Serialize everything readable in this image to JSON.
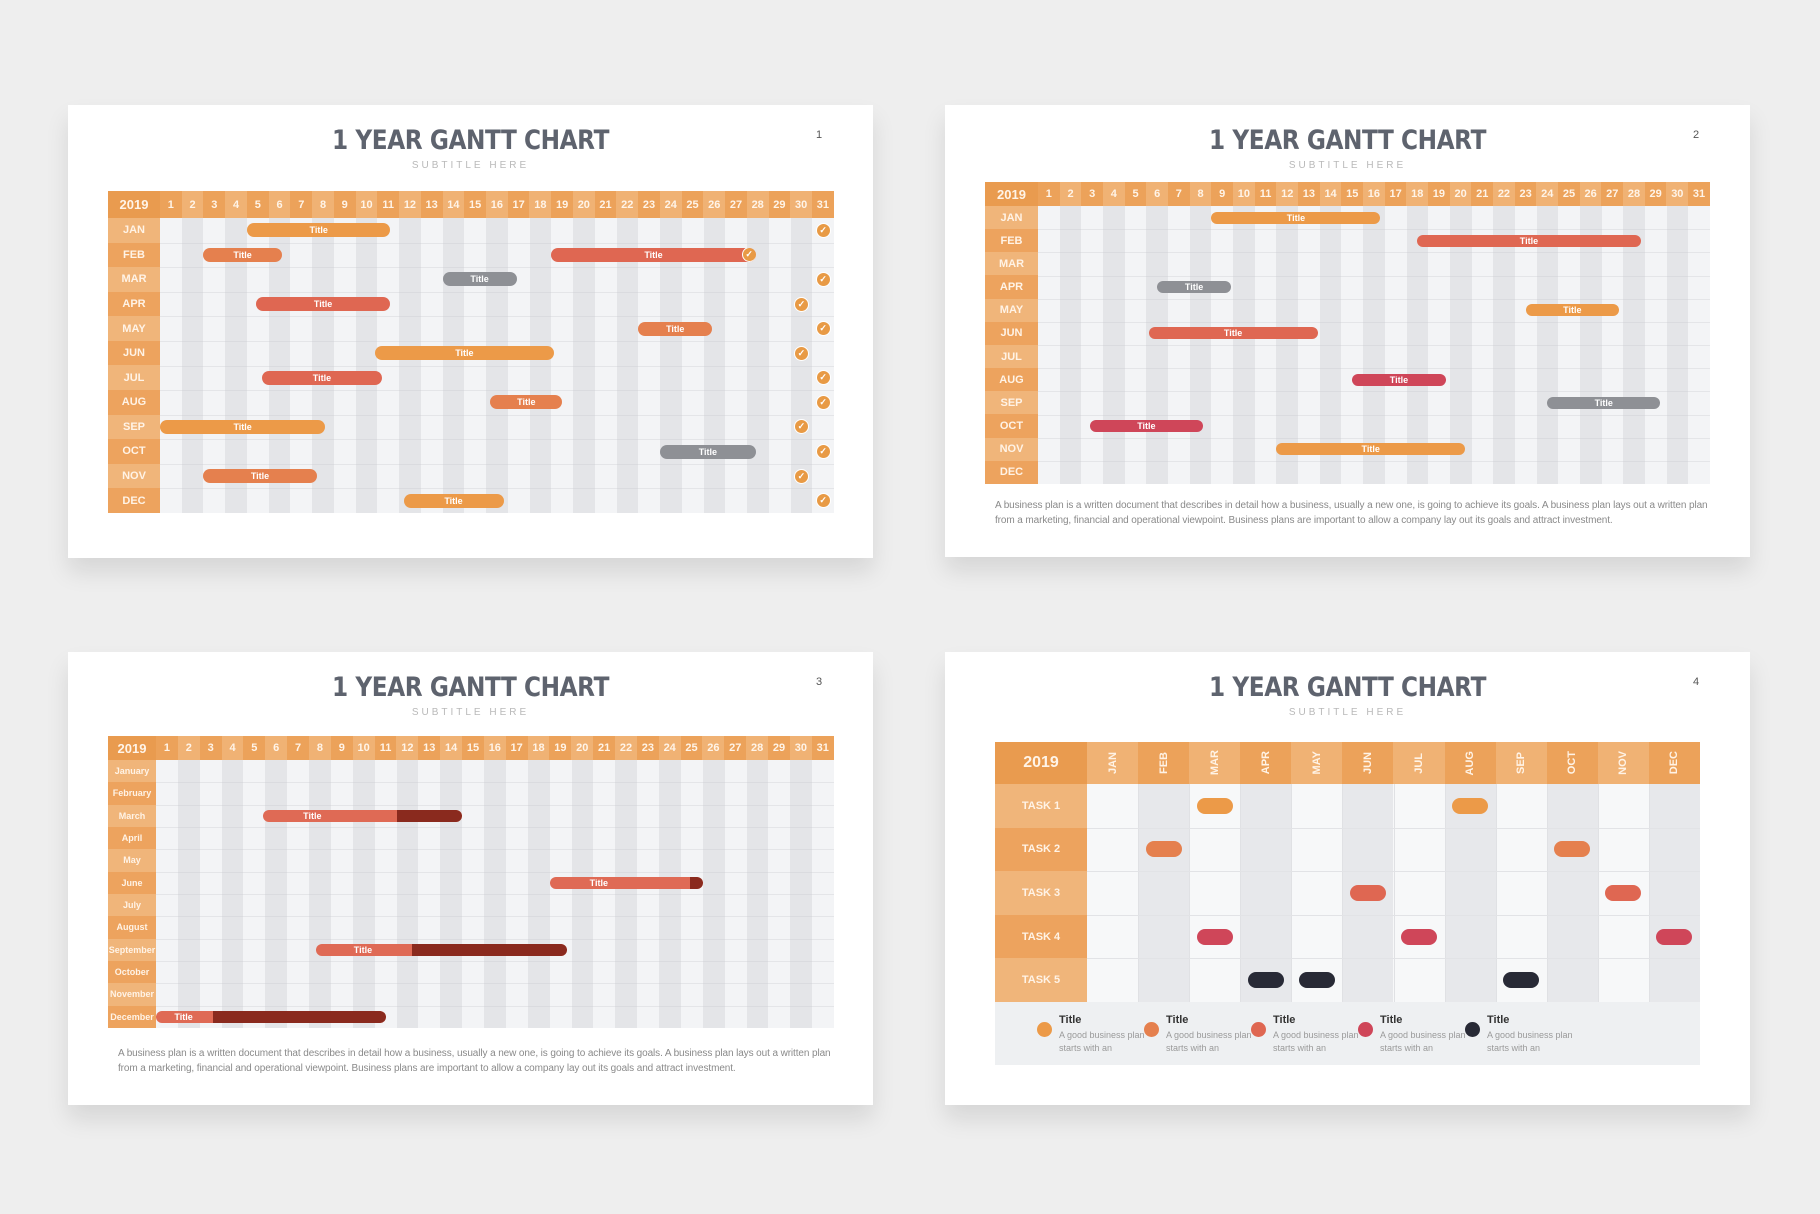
{
  "colors": {
    "orange": "#ec9a48",
    "orange_red": "#e5804e",
    "red": "#df6752",
    "gray": "#8e9095",
    "crimson": "#cf4659",
    "dark": "#282a36",
    "dark_red": "#8a2a1e",
    "header": "#eca25a",
    "header_alt": "#f0b274",
    "label": "#edac6a"
  },
  "slides": [
    {
      "title": "1 YEAR GANTT CHART",
      "subtitle": "SUBTITLE HERE",
      "number": "1",
      "year": "2019",
      "rows": [
        "JAN",
        "FEB",
        "MAR",
        "APR",
        "MAY",
        "JUN",
        "JUL",
        "AUG",
        "SEP",
        "OCT",
        "NOV",
        "DEC"
      ],
      "bars": [
        {
          "row": 0,
          "start": 5,
          "end": 11.6,
          "label": "Title",
          "color": "orange"
        },
        {
          "row": 1,
          "start": 3,
          "end": 6.6,
          "label": "Title",
          "color": "orange_red"
        },
        {
          "row": 1,
          "start": 19,
          "end": 28.4,
          "label": "Title",
          "color": "red",
          "check_end": true
        },
        {
          "row": 2,
          "start": 14,
          "end": 17.4,
          "label": "Title",
          "color": "gray"
        },
        {
          "row": 3,
          "start": 5.4,
          "end": 11.6,
          "label": "Title",
          "color": "red"
        },
        {
          "row": 4,
          "start": 23,
          "end": 26.4,
          "label": "Title",
          "color": "orange_red"
        },
        {
          "row": 5,
          "start": 10.9,
          "end": 19.1,
          "label": "Title",
          "color": "orange"
        },
        {
          "row": 6,
          "start": 5.7,
          "end": 11.2,
          "label": "Title",
          "color": "red"
        },
        {
          "row": 7,
          "start": 16.2,
          "end": 19.5,
          "label": "Title",
          "color": "orange_red"
        },
        {
          "row": 8,
          "start": 1,
          "end": 8.6,
          "label": "Title",
          "color": "orange"
        },
        {
          "row": 9,
          "start": 24,
          "end": 28.4,
          "label": "Title",
          "color": "gray"
        },
        {
          "row": 10,
          "start": 3,
          "end": 8.2,
          "label": "Title",
          "color": "orange_red"
        },
        {
          "row": 11,
          "start": 12.2,
          "end": 16.8,
          "label": "Title",
          "color": "orange"
        }
      ],
      "checks": [
        {
          "row": 0,
          "day": 31
        },
        {
          "row": 2,
          "day": 31
        },
        {
          "row": 3,
          "day": 30
        },
        {
          "row": 4,
          "day": 31
        },
        {
          "row": 5,
          "day": 30
        },
        {
          "row": 6,
          "day": 31
        },
        {
          "row": 7,
          "day": 31
        },
        {
          "row": 8,
          "day": 30
        },
        {
          "row": 9,
          "day": 31
        },
        {
          "row": 10,
          "day": 30
        },
        {
          "row": 11,
          "day": 31
        }
      ]
    },
    {
      "title": "1 YEAR GANTT CHART",
      "subtitle": "SUBTITLE HERE",
      "number": "2",
      "year": "2019",
      "rows": [
        "JAN",
        "FEB",
        "MAR",
        "APR",
        "MAY",
        "JUN",
        "JUL",
        "AUG",
        "SEP",
        "OCT",
        "NOV",
        "DEC"
      ],
      "bars": [
        {
          "row": 0,
          "start": 9,
          "end": 16.8,
          "label": "Title",
          "color": "orange"
        },
        {
          "row": 1,
          "start": 18.5,
          "end": 28.8,
          "label": "Title",
          "color": "red"
        },
        {
          "row": 3,
          "start": 6.5,
          "end": 9.9,
          "label": "Title",
          "color": "gray"
        },
        {
          "row": 4,
          "start": 23.5,
          "end": 27.8,
          "label": "Title",
          "color": "orange"
        },
        {
          "row": 5,
          "start": 6.1,
          "end": 13.9,
          "label": "Title",
          "color": "red"
        },
        {
          "row": 7,
          "start": 15.5,
          "end": 19.8,
          "label": "Title",
          "color": "crimson"
        },
        {
          "row": 8,
          "start": 24.5,
          "end": 29.7,
          "label": "Title",
          "color": "gray"
        },
        {
          "row": 9,
          "start": 3.4,
          "end": 8.6,
          "label": "Title",
          "color": "crimson"
        },
        {
          "row": 10,
          "start": 12,
          "end": 20.7,
          "label": "Title",
          "color": "orange"
        }
      ],
      "paragraph": "A business plan is a written document that describes in detail how a business, usually a new one, is going to achieve its goals. A business plan lays out a written plan from a marketing, financial and operational viewpoint. Business plans are important to allow a company lay out its goals and attract investment."
    },
    {
      "title": "1 YEAR GANTT CHART",
      "subtitle": "SUBTITLE HERE",
      "number": "3",
      "year": "2019",
      "rows": [
        "January",
        "February",
        "March",
        "April",
        "May",
        "June",
        "July",
        "August",
        "September",
        "October",
        "November",
        "December"
      ],
      "bars": [
        {
          "row": 2,
          "start": 5.9,
          "end": 15,
          "progress_end": 12,
          "label": "Title"
        },
        {
          "row": 5,
          "start": 19,
          "end": 26,
          "progress_end": 25.4,
          "label": "Title"
        },
        {
          "row": 8,
          "start": 8.3,
          "end": 19.8,
          "progress_end": 12.7,
          "label": "Title"
        },
        {
          "row": 11,
          "start": 1,
          "end": 11.5,
          "progress_end": 3.6,
          "label": "Title"
        }
      ],
      "paragraph": "A business plan is a written document that describes in detail how a business, usually a new one, is going to achieve its goals. A business plan lays out a written plan from a marketing, financial and operational viewpoint. Business plans are important to allow a company lay out its goals and attract investment."
    },
    {
      "title": "1 YEAR GANTT CHART",
      "subtitle": "SUBTITLE HERE",
      "number": "4",
      "year": "2019",
      "months": [
        "JAN",
        "FEB",
        "MAR",
        "APR",
        "MAY",
        "JUN",
        "JUL",
        "AUG",
        "SEP",
        "OCT",
        "NOV",
        "DEC"
      ],
      "tasks": [
        "TASK 1",
        "TASK 2",
        "TASK 3",
        "TASK 4",
        "TASK 5"
      ],
      "marks": [
        {
          "task": 0,
          "month": 2,
          "color": "orange"
        },
        {
          "task": 0,
          "month": 7,
          "color": "orange"
        },
        {
          "task": 1,
          "month": 1,
          "color": "orange_red"
        },
        {
          "task": 1,
          "month": 9,
          "color": "orange_red"
        },
        {
          "task": 2,
          "month": 5,
          "color": "red"
        },
        {
          "task": 2,
          "month": 10,
          "color": "red"
        },
        {
          "task": 3,
          "month": 2,
          "color": "crimson"
        },
        {
          "task": 3,
          "month": 6,
          "color": "crimson"
        },
        {
          "task": 3,
          "month": 11,
          "color": "crimson"
        },
        {
          "task": 4,
          "month": 3,
          "color": "dark"
        },
        {
          "task": 4,
          "month": 4,
          "color": "dark"
        },
        {
          "task": 4,
          "month": 8,
          "color": "dark"
        }
      ],
      "legend": [
        {
          "title": "Title",
          "text": "A good business plan starts with an",
          "color": "orange"
        },
        {
          "title": "Title",
          "text": "A good business plan starts with an",
          "color": "orange_red"
        },
        {
          "title": "Title",
          "text": "A good business plan starts with an",
          "color": "red"
        },
        {
          "title": "Title",
          "text": "A good business plan starts with an",
          "color": "crimson"
        },
        {
          "title": "Title",
          "text": "A good business plan starts with an",
          "color": "dark"
        }
      ]
    }
  ],
  "chart_data": [
    {
      "type": "gantt",
      "title": "1 YEAR GANTT CHART",
      "subtitle": "SUBTITLE HERE",
      "x_axis": "day of month (1-31)",
      "categories": [
        "JAN",
        "FEB",
        "MAR",
        "APR",
        "MAY",
        "JUN",
        "JUL",
        "AUG",
        "SEP",
        "OCT",
        "NOV",
        "DEC"
      ],
      "tasks": [
        {
          "month": "JAN",
          "start": 5,
          "end": 11
        },
        {
          "month": "FEB",
          "start": 3,
          "end": 6
        },
        {
          "month": "FEB",
          "start": 19,
          "end": 28
        },
        {
          "month": "MAR",
          "start": 14,
          "end": 17
        },
        {
          "month": "APR",
          "start": 5,
          "end": 11
        },
        {
          "month": "MAY",
          "start": 23,
          "end": 26
        },
        {
          "month": "JUN",
          "start": 11,
          "end": 19
        },
        {
          "month": "JUL",
          "start": 6,
          "end": 11
        },
        {
          "month": "AUG",
          "start": 16,
          "end": 19
        },
        {
          "month": "SEP",
          "start": 1,
          "end": 8
        },
        {
          "month": "OCT",
          "start": 24,
          "end": 28
        },
        {
          "month": "NOV",
          "start": 3,
          "end": 8
        },
        {
          "month": "DEC",
          "start": 12,
          "end": 16
        }
      ]
    },
    {
      "type": "gantt",
      "title": "1 YEAR GANTT CHART",
      "categories": [
        "JAN",
        "FEB",
        "MAR",
        "APR",
        "MAY",
        "JUN",
        "JUL",
        "AUG",
        "SEP",
        "OCT",
        "NOV",
        "DEC"
      ],
      "tasks": [
        {
          "month": "JAN",
          "start": 9,
          "end": 16
        },
        {
          "month": "FEB",
          "start": 18,
          "end": 28
        },
        {
          "month": "APR",
          "start": 6,
          "end": 9
        },
        {
          "month": "MAY",
          "start": 23,
          "end": 27
        },
        {
          "month": "JUN",
          "start": 6,
          "end": 13
        },
        {
          "month": "AUG",
          "start": 15,
          "end": 19
        },
        {
          "month": "SEP",
          "start": 24,
          "end": 29
        },
        {
          "month": "OCT",
          "start": 3,
          "end": 8
        },
        {
          "month": "NOV",
          "start": 12,
          "end": 20
        }
      ]
    },
    {
      "type": "gantt",
      "title": "1 YEAR GANTT CHART",
      "categories": [
        "January",
        "February",
        "March",
        "April",
        "May",
        "June",
        "July",
        "August",
        "September",
        "October",
        "November",
        "December"
      ],
      "tasks": [
        {
          "month": "March",
          "start": 6,
          "end": 14,
          "progress_to": 11
        },
        {
          "month": "June",
          "start": 19,
          "end": 25,
          "progress_to": 25
        },
        {
          "month": "September",
          "start": 8,
          "end": 19,
          "progress_to": 12
        },
        {
          "month": "December",
          "start": 1,
          "end": 11,
          "progress_to": 3
        }
      ]
    },
    {
      "type": "gantt",
      "title": "1 YEAR GANTT CHART",
      "categories": [
        "JAN",
        "FEB",
        "MAR",
        "APR",
        "MAY",
        "JUN",
        "JUL",
        "AUG",
        "SEP",
        "OCT",
        "NOV",
        "DEC"
      ],
      "tasks": [
        {
          "task": "TASK 1",
          "months": [
            "MAR",
            "AUG"
          ]
        },
        {
          "task": "TASK 2",
          "months": [
            "FEB",
            "OCT"
          ]
        },
        {
          "task": "TASK 3",
          "months": [
            "JUN",
            "NOV"
          ]
        },
        {
          "task": "TASK 4",
          "months": [
            "MAR",
            "JUL",
            "DEC"
          ]
        },
        {
          "task": "TASK 5",
          "months": [
            "APR",
            "MAY",
            "SEP"
          ]
        }
      ]
    }
  ]
}
